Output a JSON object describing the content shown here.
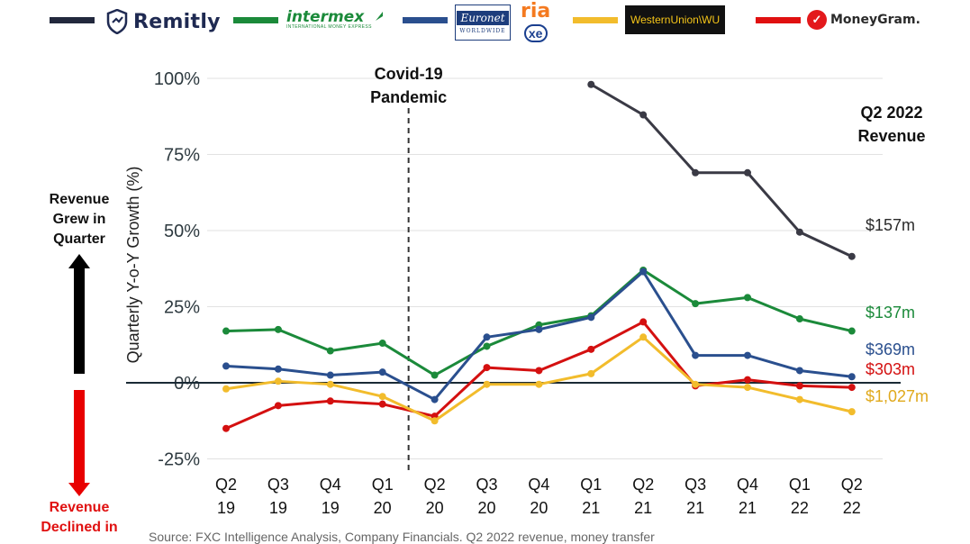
{
  "legend": [
    {
      "name": "Remitly",
      "color": "#22283d"
    },
    {
      "name": "intermex",
      "sub": "INTERNATIONAL MONEY EXPRESS",
      "color": "#1b8a3a"
    },
    {
      "name": "Euronet",
      "sub": "WORLDWIDE",
      "color": "#2a4f8e"
    },
    {
      "name": "ria",
      "sub": "xe",
      "color": "#2a4f8e"
    },
    {
      "name": "WesternUnion\\WU",
      "color": "#f2bc2c"
    },
    {
      "name": "MoneyGram.",
      "color": "#e01010"
    }
  ],
  "annotations": {
    "covid": "Covid-19\nPandemic",
    "revenue_header": "Q2 2022\nRevenue",
    "grew": "Revenue\nGrew in\nQuarter",
    "declined": "Revenue\nDeclined in",
    "footer": "Source: FXC Intelligence Analysis, Company Financials. Q2 2022 revenue, money transfer"
  },
  "chart_data": {
    "type": "line",
    "title": "",
    "xlabel": "",
    "ylabel": "Quarterly Y-o-Y Growth (%)",
    "ylim": [
      -25,
      100
    ],
    "yticks": [
      100,
      75,
      50,
      25,
      0,
      -25
    ],
    "ytick_labels": [
      "100%",
      "75%",
      "50%",
      "25%",
      "0%",
      "-25%"
    ],
    "categories": [
      [
        "Q2",
        "19"
      ],
      [
        "Q3",
        "19"
      ],
      [
        "Q4",
        "19"
      ],
      [
        "Q1",
        "20"
      ],
      [
        "Q2",
        "20"
      ],
      [
        "Q3",
        "20"
      ],
      [
        "Q4",
        "20"
      ],
      [
        "Q1",
        "21"
      ],
      [
        "Q2",
        "21"
      ],
      [
        "Q3",
        "21"
      ],
      [
        "Q4",
        "21"
      ],
      [
        "Q1",
        "22"
      ],
      [
        "Q2",
        "22"
      ]
    ],
    "grid": true,
    "series": [
      {
        "name": "Remitly",
        "color": "#3a3a45",
        "label": "$157m",
        "label_color": "#2a2a2a",
        "values": [
          null,
          null,
          null,
          null,
          null,
          null,
          null,
          98,
          88,
          69,
          69,
          49.5,
          41.5
        ]
      },
      {
        "name": "Intermex",
        "color": "#1b8a3a",
        "label": "$137m",
        "label_color": "#1b8a3a",
        "values": [
          17,
          17.5,
          10.5,
          13,
          2.5,
          12,
          19,
          22,
          37,
          26,
          28,
          21,
          17
        ]
      },
      {
        "name": "Euronet (ria, xe)",
        "color": "#2a4f8e",
        "label": "$369m",
        "label_color": "#2a4f8e",
        "values": [
          5.5,
          4.5,
          2.5,
          3.5,
          -5.5,
          15,
          17.5,
          21.5,
          36.5,
          9,
          9,
          4,
          2
        ]
      },
      {
        "name": "MoneyGram",
        "color": "#d41010",
        "label": "$303m",
        "label_color": "#d41010",
        "values": [
          -15,
          -7.5,
          -6,
          -7,
          -11,
          5,
          4,
          11,
          20,
          -1,
          1,
          -1,
          -1.5
        ]
      },
      {
        "name": "Western Union",
        "color": "#f2bc2c",
        "label": "$1,027m",
        "label_color": "#e0a91c",
        "values": [
          -2,
          0.5,
          -0.5,
          -4.5,
          -12.5,
          -0.5,
          -0.5,
          3,
          15,
          -0.5,
          -1.5,
          -5.5,
          -9.5
        ]
      }
    ]
  }
}
